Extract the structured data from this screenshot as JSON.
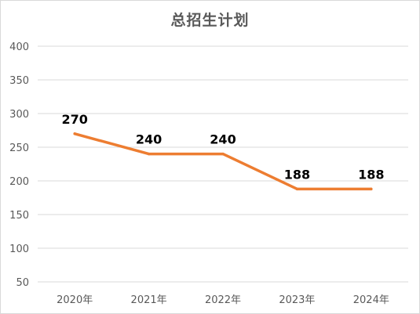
{
  "chart_data": {
    "type": "line",
    "title": "总招生计划",
    "categories": [
      "2020年",
      "2021年",
      "2022年",
      "2023年",
      "2024年"
    ],
    "values": [
      270,
      240,
      240,
      188,
      188
    ],
    "data_labels": [
      "270",
      "240",
      "240",
      "188",
      "188"
    ],
    "y_ticks": [
      "50",
      "100",
      "150",
      "200",
      "250",
      "300",
      "350",
      "400"
    ],
    "ylim": [
      50,
      400
    ],
    "grid": "horizontal",
    "line_color": "#ed7d31",
    "legend": "none"
  }
}
